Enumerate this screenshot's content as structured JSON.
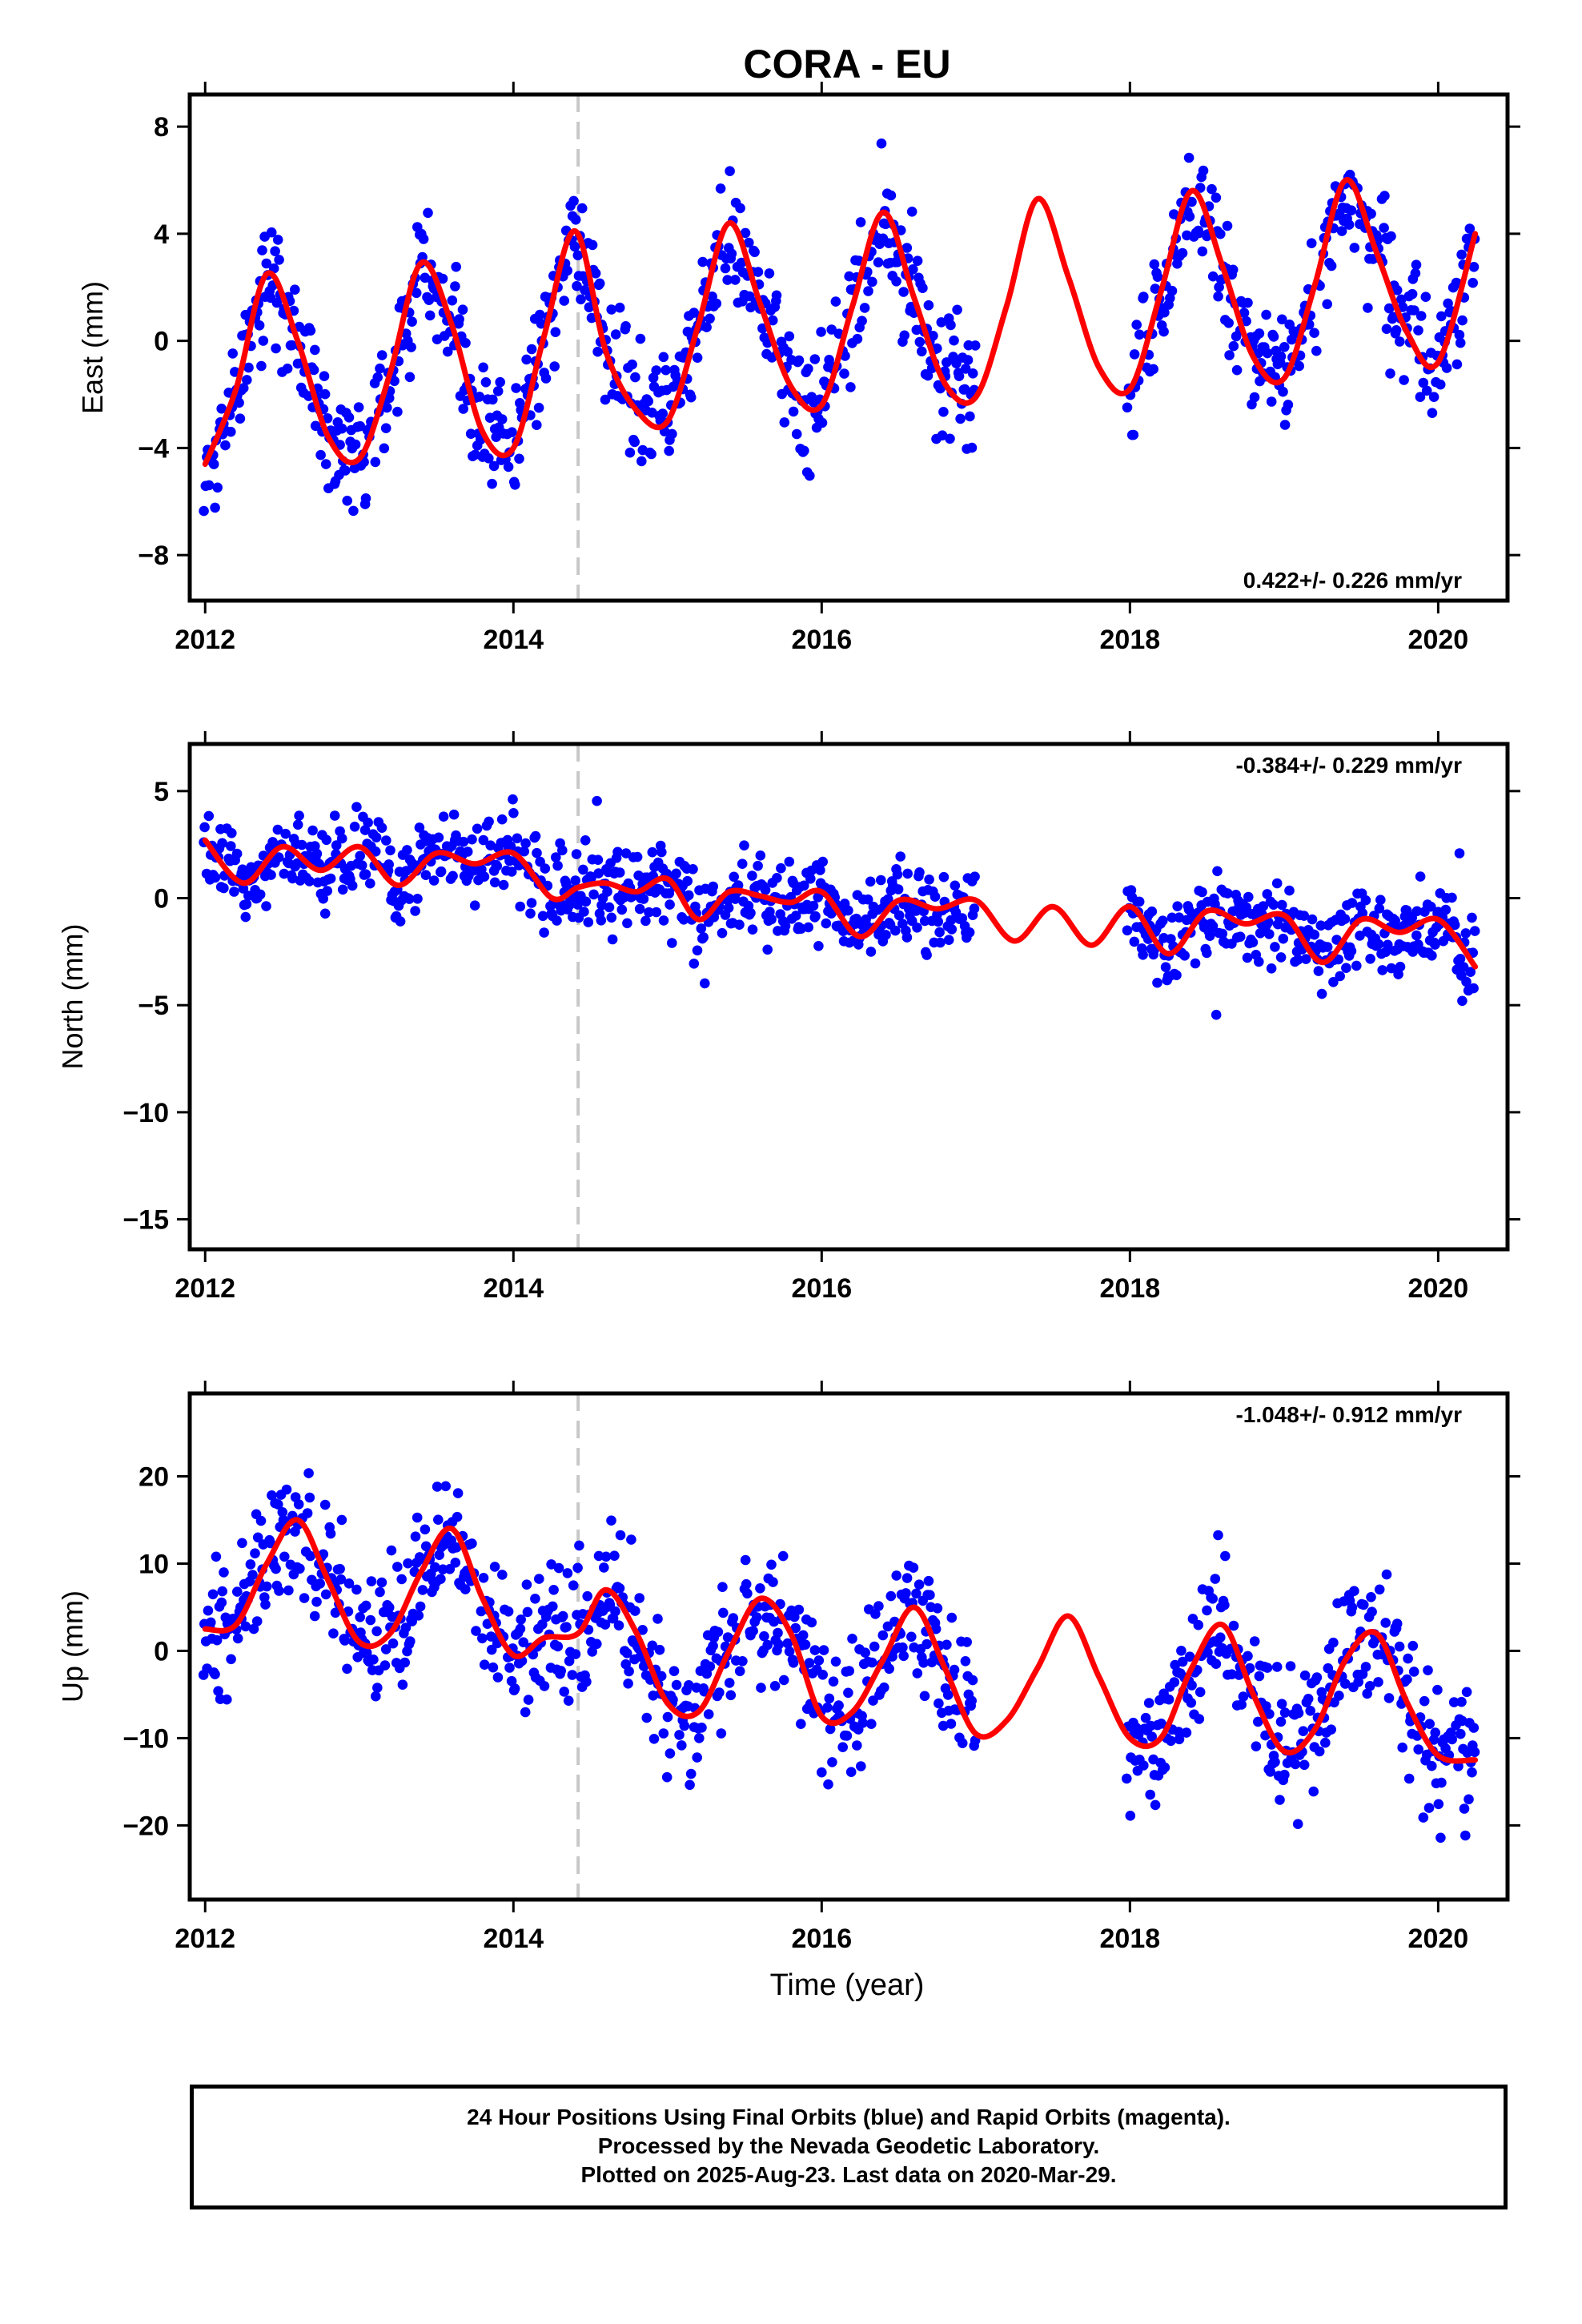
{
  "colors": {
    "points": "#0000ff",
    "fit": "#ff0000",
    "event_line": "#c8c8c8",
    "frame": "#000000"
  },
  "chart_data": {
    "type": "scatter",
    "title": "CORA - EU",
    "xlabel": "Time (year)",
    "xticks": [
      "2012",
      "2014",
      "2016",
      "2018",
      "2020"
    ],
    "xlim": [
      2011.9,
      2020.45
    ],
    "event_line_x": 2014.42,
    "data_gaps": [
      [
        2017.0,
        2017.98
      ]
    ],
    "panels": [
      {
        "name": "East",
        "ylabel": "East (mm)",
        "ylim": [
          -9.7,
          9.2
        ],
        "yticks": [
          8,
          4,
          0,
          -4,
          -8
        ],
        "ytick_labels": [
          "8",
          "4",
          "0",
          "−4",
          "−8"
        ],
        "rate_label": "0.422+/- 0.226 mm/yr",
        "rate_position": "bottom-right",
        "series": [
          {
            "type": "line",
            "x": [
              2012.0,
              2012.2,
              2012.4,
              2012.6,
              2012.8,
              2013.0,
              2013.2,
              2013.4,
              2013.6,
              2013.8,
              2014.0,
              2014.2,
              2014.4,
              2014.6,
              2014.8,
              2015.0,
              2015.2,
              2015.4,
              2015.6,
              2015.8,
              2016.0,
              2016.2,
              2016.4,
              2016.6,
              2016.8,
              2017.0,
              2017.2,
              2017.4,
              2017.6,
              2017.8,
              2018.0,
              2018.2,
              2018.4,
              2018.6,
              2018.8,
              2019.0,
              2019.2,
              2019.4,
              2019.6,
              2019.8,
              2020.0,
              2020.24
            ],
            "y": [
              -4.6,
              -1.8,
              2.5,
              0.0,
              -3.6,
              -4.4,
              -1.2,
              2.9,
              0.6,
              -3.4,
              -4.0,
              0.2,
              4.1,
              -0.4,
              -2.6,
              -3.0,
              0.6,
              4.4,
              1.4,
              -1.7,
              -2.4,
              1.3,
              4.8,
              1.6,
              -1.6,
              -2.1,
              1.3,
              5.3,
              2.4,
              -1.0,
              -1.8,
              1.8,
              5.6,
              2.8,
              -0.6,
              -1.4,
              2.1,
              6.0,
              3.3,
              0.3,
              -0.8,
              4.0
            ]
          },
          {
            "type": "scatter",
            "seed": 11,
            "noise": 1.1
          }
        ]
      },
      {
        "name": "North",
        "ylabel": "North (mm)",
        "ylim": [
          -16.4,
          7.2
        ],
        "yticks": [
          5,
          0,
          -5,
          -10,
          -15
        ],
        "ytick_labels": [
          "5",
          "0",
          "−5",
          "−10",
          "−15"
        ],
        "rate_label": "-0.384+/- 0.229 mm/yr",
        "rate_position": "top-right",
        "series": [
          {
            "type": "line",
            "x": [
              2012.0,
              2012.25,
              2012.5,
              2012.75,
              2013.0,
              2013.25,
              2013.5,
              2013.75,
              2014.0,
              2014.25,
              2014.42,
              2014.6,
              2014.8,
              2015.0,
              2015.2,
              2015.4,
              2015.6,
              2015.8,
              2016.0,
              2016.25,
              2016.5,
              2016.75,
              2017.0,
              2017.25,
              2017.5,
              2017.75,
              2018.0,
              2018.25,
              2018.5,
              2018.75,
              2019.0,
              2019.25,
              2019.5,
              2019.75,
              2020.0,
              2020.24
            ],
            "y": [
              2.7,
              0.7,
              2.4,
              1.3,
              2.4,
              0.6,
              2.1,
              1.6,
              2.1,
              0.0,
              0.5,
              0.7,
              0.3,
              0.9,
              -1.0,
              0.3,
              0.1,
              -0.2,
              0.3,
              -1.8,
              -0.1,
              -0.5,
              -0.1,
              -2.0,
              -0.4,
              -2.2,
              -0.4,
              -2.6,
              -0.6,
              -1.2,
              -0.8,
              -3.0,
              -1.0,
              -1.6,
              -1.0,
              -3.2
            ]
          },
          {
            "type": "scatter",
            "seed": 23,
            "noise": 0.95
          }
        ]
      },
      {
        "name": "Up",
        "ylabel": "Up (mm)",
        "ylim": [
          -28.5,
          29.5
        ],
        "yticks": [
          20,
          10,
          0,
          -10,
          -20
        ],
        "ytick_labels": [
          "20",
          "10",
          "0",
          "−10",
          "−20"
        ],
        "rate_label": "-1.048+/- 0.912 mm/yr",
        "rate_position": "top-right",
        "series": [
          {
            "type": "line",
            "x": [
              2012.0,
              2012.2,
              2012.4,
              2012.6,
              2012.8,
              2013.0,
              2013.2,
              2013.4,
              2013.6,
              2013.8,
              2014.0,
              2014.2,
              2014.42,
              2014.6,
              2014.8,
              2015.0,
              2015.2,
              2015.4,
              2015.6,
              2015.8,
              2016.0,
              2016.2,
              2016.4,
              2016.6,
              2016.8,
              2017.0,
              2017.2,
              2017.4,
              2017.6,
              2017.8,
              2018.0,
              2018.2,
              2018.4,
              2018.6,
              2018.8,
              2019.0,
              2019.2,
              2019.4,
              2019.6,
              2019.8,
              2020.0,
              2020.24
            ],
            "y": [
              2.5,
              3.0,
              10.0,
              15.0,
              8.0,
              1.0,
              2.0,
              9.0,
              14.0,
              6.0,
              -0.5,
              1.5,
              2.0,
              7.0,
              2.0,
              -6.0,
              -7.0,
              0.0,
              6.0,
              2.0,
              -7.5,
              -7.0,
              -1.0,
              5.0,
              -2.0,
              -9.5,
              -8.0,
              -2.0,
              4.0,
              -3.0,
              -10.0,
              -10.0,
              -2.0,
              3.0,
              -5.0,
              -11.5,
              -9.0,
              -1.0,
              2.0,
              -6.0,
              -12.0,
              -12.5
            ]
          },
          {
            "type": "scatter",
            "seed": 37,
            "noise": 3.9
          }
        ]
      }
    ]
  },
  "footer": {
    "line1": "24 Hour Positions Using Final Orbits (blue) and Rapid Orbits (magenta).",
    "line2": "Processed by the Nevada Geodetic Laboratory.",
    "line3": "Plotted on 2025-Aug-23. Last data on 2020-Mar-29."
  }
}
